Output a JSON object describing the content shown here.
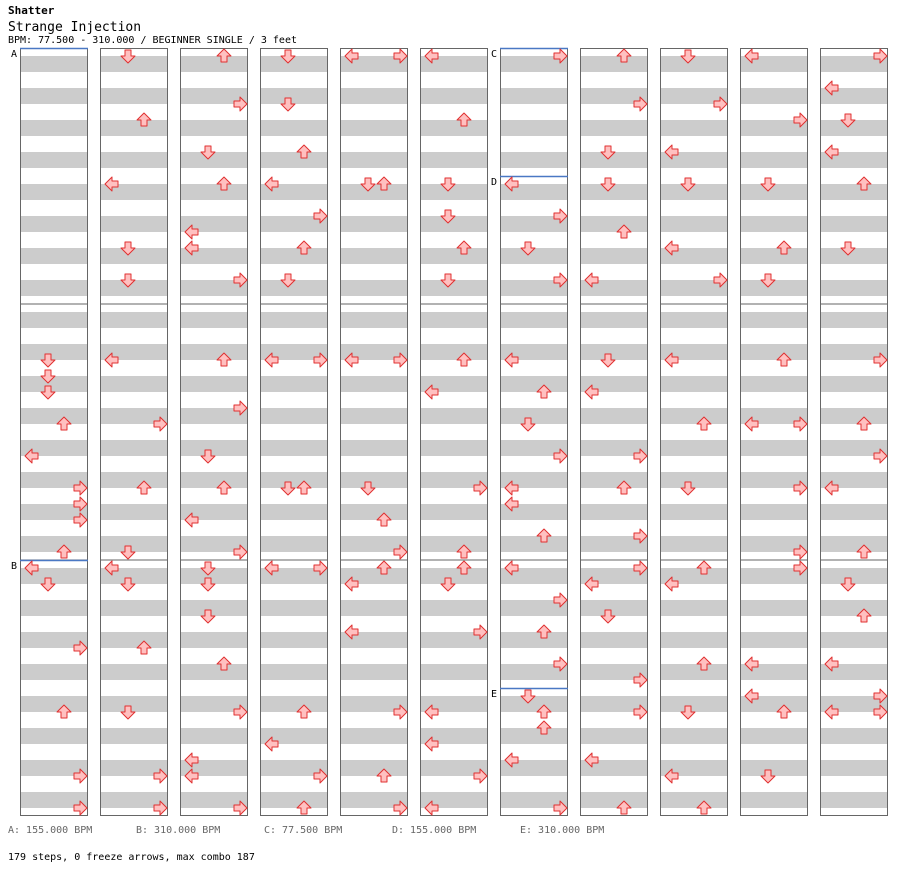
{
  "header": {
    "artist": "Shatter",
    "title": "Strange Injection",
    "info": "BPM: 77.500 - 310.000 / BEGINNER SINGLE / 3 feet"
  },
  "colors": {
    "arrow_fill": "#ffc0c0",
    "arrow_stroke": "#e03030",
    "band": "#cccccc",
    "bpm_line": "#4a78c4",
    "legend_text": "#666666"
  },
  "bpm_legend": [
    {
      "label": "A: 155.000 BPM"
    },
    {
      "label": "B: 310.000 BPM"
    },
    {
      "label": "C: 77.500 BPM"
    },
    {
      "label": "D: 155.000 BPM"
    },
    {
      "label": "E: 310.000 BPM"
    }
  ],
  "bpm_markers": [
    {
      "label": "A",
      "column": 0,
      "row": 0
    },
    {
      "label": "B",
      "column": 0,
      "row": 32
    },
    {
      "label": "C",
      "column": 6,
      "row": 0
    },
    {
      "label": "D",
      "column": 6,
      "row": 8
    },
    {
      "label": "E",
      "column": 6,
      "row": 40
    }
  ],
  "notes": [
    [
      [
        19,
        "D"
      ],
      [
        20,
        "D"
      ],
      [
        21,
        "D"
      ],
      [
        23,
        "U"
      ],
      [
        25,
        "L"
      ],
      [
        27,
        "R"
      ],
      [
        28,
        "R"
      ],
      [
        29,
        "R"
      ],
      [
        31,
        "U"
      ],
      [
        33,
        "D"
      ],
      [
        32,
        "L"
      ],
      [
        37,
        "R"
      ],
      [
        41,
        "U"
      ],
      [
        45,
        "R"
      ],
      [
        47,
        "R"
      ]
    ],
    [
      [
        0,
        "D"
      ],
      [
        4,
        "U"
      ],
      [
        8,
        "L"
      ],
      [
        12,
        "D"
      ],
      [
        14,
        "D"
      ],
      [
        19,
        "L"
      ],
      [
        23,
        "R"
      ],
      [
        27,
        "U"
      ],
      [
        31,
        "D"
      ],
      [
        33,
        "D"
      ],
      [
        32,
        "L"
      ],
      [
        37,
        "U"
      ],
      [
        41,
        "D"
      ],
      [
        45,
        "R"
      ],
      [
        47,
        "R"
      ]
    ],
    [
      [
        0,
        "U"
      ],
      [
        3,
        "R"
      ],
      [
        6,
        "D"
      ],
      [
        8,
        "U"
      ],
      [
        11,
        "L"
      ],
      [
        12,
        "L"
      ],
      [
        14,
        "R"
      ],
      [
        19,
        "U"
      ],
      [
        22,
        "R"
      ],
      [
        25,
        "D"
      ],
      [
        27,
        "U"
      ],
      [
        29,
        "L"
      ],
      [
        31,
        "R"
      ],
      [
        33,
        "D"
      ],
      [
        32,
        "D"
      ],
      [
        35,
        "D"
      ],
      [
        38,
        "U"
      ],
      [
        41,
        "R"
      ],
      [
        44,
        "L"
      ],
      [
        45,
        "L"
      ],
      [
        47,
        "R"
      ]
    ],
    [
      [
        0,
        "D"
      ],
      [
        3,
        "D"
      ],
      [
        6,
        "U"
      ],
      [
        8,
        "L"
      ],
      [
        10,
        "R"
      ],
      [
        12,
        "U"
      ],
      [
        14,
        "D"
      ],
      [
        19,
        "L"
      ],
      [
        19,
        "R"
      ],
      [
        27,
        "D"
      ],
      [
        27,
        "U"
      ],
      [
        32,
        "L"
      ],
      [
        32,
        "R"
      ],
      [
        41,
        "U"
      ],
      [
        43,
        "L"
      ],
      [
        45,
        "R"
      ],
      [
        47,
        "U"
      ]
    ],
    [
      [
        0,
        "L"
      ],
      [
        0,
        "R"
      ],
      [
        8,
        "D"
      ],
      [
        8,
        "U"
      ],
      [
        19,
        "L"
      ],
      [
        19,
        "R"
      ],
      [
        27,
        "D"
      ],
      [
        29,
        "U"
      ],
      [
        31,
        "R"
      ],
      [
        33,
        "L"
      ],
      [
        32,
        "U"
      ],
      [
        36,
        "L"
      ],
      [
        41,
        "R"
      ],
      [
        45,
        "U"
      ],
      [
        47,
        "R"
      ]
    ],
    [
      [
        0,
        "L"
      ],
      [
        4,
        "U"
      ],
      [
        8,
        "D"
      ],
      [
        10,
        "D"
      ],
      [
        12,
        "U"
      ],
      [
        14,
        "D"
      ],
      [
        19,
        "U"
      ],
      [
        21,
        "L"
      ],
      [
        27,
        "R"
      ],
      [
        31,
        "U"
      ],
      [
        33,
        "D"
      ],
      [
        32,
        "U"
      ],
      [
        36,
        "R"
      ],
      [
        41,
        "L"
      ],
      [
        43,
        "L"
      ],
      [
        45,
        "R"
      ],
      [
        47,
        "L"
      ]
    ],
    [
      [
        0,
        "R"
      ],
      [
        8,
        "L"
      ],
      [
        10,
        "R"
      ],
      [
        12,
        "D"
      ],
      [
        14,
        "R"
      ],
      [
        19,
        "L"
      ],
      [
        21,
        "U"
      ],
      [
        23,
        "D"
      ],
      [
        25,
        "R"
      ],
      [
        27,
        "L"
      ],
      [
        28,
        "L"
      ],
      [
        30,
        "U"
      ],
      [
        32,
        "L"
      ],
      [
        34,
        "R"
      ],
      [
        36,
        "U"
      ],
      [
        38,
        "R"
      ],
      [
        40,
        "D"
      ],
      [
        42,
        "U"
      ],
      [
        41,
        "U"
      ],
      [
        44,
        "L"
      ],
      [
        47,
        "R"
      ]
    ],
    [
      [
        0,
        "U"
      ],
      [
        3,
        "R"
      ],
      [
        6,
        "D"
      ],
      [
        8,
        "D"
      ],
      [
        11,
        "U"
      ],
      [
        14,
        "L"
      ],
      [
        19,
        "D"
      ],
      [
        21,
        "L"
      ],
      [
        25,
        "R"
      ],
      [
        27,
        "U"
      ],
      [
        30,
        "R"
      ],
      [
        32,
        "R"
      ],
      [
        33,
        "L"
      ],
      [
        35,
        "D"
      ],
      [
        39,
        "R"
      ],
      [
        41,
        "R"
      ],
      [
        44,
        "L"
      ],
      [
        47,
        "U"
      ]
    ],
    [
      [
        0,
        "D"
      ],
      [
        3,
        "R"
      ],
      [
        6,
        "L"
      ],
      [
        8,
        "D"
      ],
      [
        12,
        "L"
      ],
      [
        14,
        "R"
      ],
      [
        19,
        "L"
      ],
      [
        23,
        "U"
      ],
      [
        27,
        "D"
      ],
      [
        33,
        "L"
      ],
      [
        32,
        "U"
      ],
      [
        38,
        "U"
      ],
      [
        41,
        "D"
      ],
      [
        45,
        "L"
      ],
      [
        47,
        "U"
      ]
    ],
    [
      [
        0,
        "L"
      ],
      [
        4,
        "R"
      ],
      [
        8,
        "D"
      ],
      [
        12,
        "U"
      ],
      [
        14,
        "D"
      ],
      [
        19,
        "U"
      ],
      [
        23,
        "L"
      ],
      [
        23,
        "R"
      ],
      [
        27,
        "R"
      ],
      [
        31,
        "R"
      ],
      [
        32,
        "R"
      ],
      [
        38,
        "L"
      ],
      [
        40,
        "L"
      ],
      [
        41,
        "U"
      ],
      [
        45,
        "D"
      ]
    ],
    [
      [
        0,
        "R"
      ],
      [
        2,
        "L"
      ],
      [
        4,
        "D"
      ],
      [
        6,
        "L"
      ],
      [
        8,
        "U"
      ],
      [
        12,
        "D"
      ],
      [
        19,
        "R"
      ],
      [
        23,
        "U"
      ],
      [
        25,
        "R"
      ],
      [
        27,
        "L"
      ],
      [
        31,
        "U"
      ],
      [
        33,
        "D"
      ],
      [
        35,
        "U"
      ],
      [
        38,
        "L"
      ],
      [
        40,
        "R"
      ],
      [
        41,
        "L"
      ],
      [
        41,
        "R"
      ]
    ]
  ],
  "summary": "179 steps, 0 freeze arrows, max combo 187"
}
